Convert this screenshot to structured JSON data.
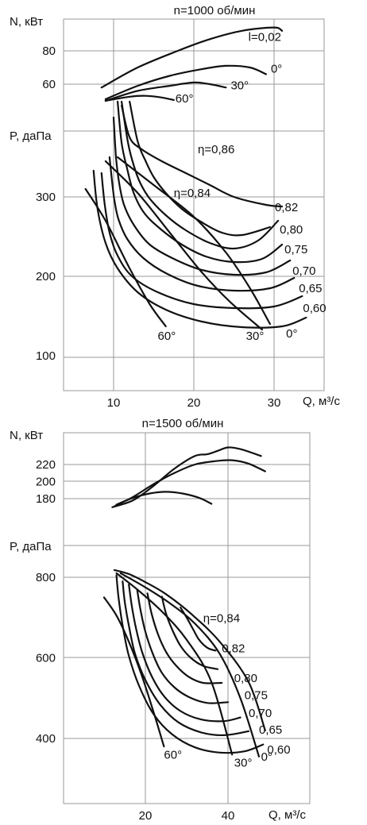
{
  "chart_data": [
    {
      "type": "line",
      "title": "n=1000 об/мин",
      "xlabel": "Q, м³/с",
      "xlim": [
        5,
        31
      ],
      "x_ticks": [
        {
          "value": 10,
          "label": "10"
        },
        {
          "value": 20,
          "label": "20"
        },
        {
          "value": 30,
          "label": "30"
        }
      ],
      "power_axis": {
        "label": "N, кВт",
        "ticks": [
          {
            "value": 80,
            "label": "80"
          },
          {
            "value": 60,
            "label": "60"
          }
        ],
        "series": [
          {
            "name": "l=0,02",
            "x": [
              8.5,
              13,
              18,
              22,
              26,
              30,
              31
            ],
            "y": [
              58,
              70,
              80,
              87,
              92,
              94,
              92
            ]
          },
          {
            "name": "0°",
            "x": [
              9,
              13,
              17,
              21,
              24,
              27,
              29
            ],
            "y": [
              51,
              59,
              65,
              69,
              71,
              70,
              66
            ]
          },
          {
            "name": "30°",
            "x": [
              9,
              13,
              17,
              20,
              22,
              24
            ],
            "y": [
              50,
              56,
              59,
              61,
              60,
              58
            ]
          },
          {
            "name": "60°",
            "x": [
              9,
              12,
              14,
              16,
              17.5
            ],
            "y": [
              50,
              52.5,
              53,
              52,
              50.5
            ]
          }
        ],
        "series_labels": [
          {
            "text": "l=0,02",
            "x": 26.8,
            "y": 86
          },
          {
            "text": "0°",
            "x": 29.6,
            "y": 67
          },
          {
            "text": "30°",
            "x": 24.6,
            "y": 57
          },
          {
            "text": "60°",
            "x": 17.7,
            "y": 49
          }
        ]
      },
      "pressure_axis": {
        "label": "P, даПа",
        "ticks": [
          {
            "value": 300,
            "label": "300"
          },
          {
            "value": 200,
            "label": "200"
          },
          {
            "value": 100,
            "label": "100"
          }
        ],
        "efficiency_curves": [
          {
            "name": "η=0,86",
            "x": [
              11,
              12,
              13.5,
              16,
              19,
              22,
              25,
              29,
              31
            ],
            "y": [
              415,
              375,
              360,
              345,
              330,
              315,
              300,
              290,
              288
            ]
          },
          {
            "name": "η=0,84",
            "x": [
              12,
              13,
              14,
              15,
              16.5,
              18.5,
              21,
              23.5,
              26,
              29.5
            ],
            "y": [
              420,
              370,
              345,
              325,
              305,
              285,
              268,
              255,
              252,
              262
            ]
          },
          {
            "name": "0,82",
            "x": [
              11,
              11.8,
              12.5,
              13.3,
              14.5,
              16.5,
              19,
              22,
              25,
              28,
              30.5
            ],
            "y": [
              420,
              368,
              340,
              318,
              298,
              277,
              258,
              242,
              235,
              245,
              270
            ]
          },
          {
            "name": "0,80",
            "x": [
              10.5,
              11,
              11.7,
              12.5,
              13.8,
              15.8,
              18.5,
              21.5,
              25,
              28.5,
              31
            ],
            "y": [
              420,
              368,
              335,
              305,
              280,
              260,
              240,
              225,
              218,
              222,
              240
            ]
          },
          {
            "name": "0,75",
            "x": [
              10,
              10.3,
              10.7,
              11.3,
              12.5,
              14.5,
              17.5,
              21,
              25,
              29,
              32
            ],
            "y": [
              400,
              350,
              317,
              290,
              265,
              240,
              222,
              208,
              202,
              205,
              220
            ]
          },
          {
            "name": "0,70",
            "x": [
              9.5,
              9.8,
              10.1,
              10.6,
              11.7,
              13.7,
              16.7,
              20.5,
              25,
              29.5,
              32.5
            ],
            "y": [
              350,
              320,
              296,
              272,
              247,
              223,
              203,
              188,
              182,
              185,
              198
            ]
          },
          {
            "name": "0,65",
            "x": [
              8.5,
              8.9,
              9.5,
              10.5,
              12.3,
              15.5,
              20,
              25,
              30,
              33.5
            ],
            "y": [
              330,
              290,
              255,
              226,
              200,
              180,
              165,
              160,
              162,
              175
            ]
          },
          {
            "name": "0,60",
            "x": [
              7.5,
              8,
              9,
              10.5,
              13,
              16.5,
              21,
              26,
              31,
              34
            ],
            "y": [
              333,
              285,
              242,
              210,
              180,
              158,
              143,
              136,
              137,
              148
            ]
          }
        ],
        "blade_angle_curves": [
          {
            "name": "60°",
            "x": [
              6.5,
              9,
              12,
              14.5,
              16.5
            ],
            "y": [
              310,
              270,
              210,
              165,
              137
            ]
          },
          {
            "name": "30°",
            "x": [
              9,
              13,
              17,
              21,
              24.5,
              28.5
            ],
            "y": [
              345,
              305,
              255,
              205,
              168,
              133
            ]
          },
          {
            "name": "0°",
            "x": [
              10.5,
              15,
              20,
              24,
              27,
              29.5
            ],
            "y": [
              350,
              315,
              275,
              230,
              185,
              140
            ]
          }
        ],
        "efficiency_labels": [
          {
            "text": "η=0,86",
            "x": 20.5,
            "y": 355
          },
          {
            "text": "η=0,84",
            "x": 17.5,
            "y": 300
          },
          {
            "text": "0,82",
            "x": 30.1,
            "y": 282
          },
          {
            "text": "0,80",
            "x": 30.7,
            "y": 254
          },
          {
            "text": "0,75",
            "x": 31.3,
            "y": 229
          },
          {
            "text": "0,70",
            "x": 32.3,
            "y": 202
          },
          {
            "text": "0,65",
            "x": 33.1,
            "y": 180
          },
          {
            "text": "0,60",
            "x": 33.6,
            "y": 155
          }
        ],
        "blade_angle_labels": [
          {
            "text": "60°",
            "x": 15.5,
            "y": 120
          },
          {
            "text": "30°",
            "x": 26.5,
            "y": 120
          },
          {
            "text": "0°",
            "x": 31.5,
            "y": 123
          }
        ]
      }
    },
    {
      "type": "line",
      "title": "n=1500 об/мин",
      "xlabel": "Q, м³/с",
      "xlim": [
        0,
        52
      ],
      "x_ticks": [
        {
          "value": 20,
          "label": "20"
        },
        {
          "value": 40,
          "label": "40"
        }
      ],
      "power_axis": {
        "label": "N, кВт",
        "ticks": [
          {
            "value": 220,
            "label": "220"
          },
          {
            "value": 200,
            "label": "200"
          },
          {
            "value": 180,
            "label": "180"
          }
        ],
        "series": [
          {
            "name": "0°",
            "x": [
              12,
              17,
              22,
              27,
              32,
              35,
              37.5,
              40,
              43,
              48
            ],
            "y": [
              170,
              178,
              195,
              215,
              230,
              232,
              236,
              240,
              238,
              230
            ]
          },
          {
            "name": "30°",
            "x": [
              12.5,
              17,
              22,
              27,
              32,
              37,
              41,
              45,
              49
            ],
            "y": [
              171,
              182,
              197,
              210,
              220,
              224,
              225,
              221,
              212
            ]
          },
          {
            "name": "60°",
            "x": [
              13,
              17,
              21,
              25,
              29,
              33,
              36
            ],
            "y": [
              173,
              181,
              186,
              188,
              186,
              181,
              174
            ]
          }
        ]
      },
      "pressure_axis": {
        "label": "P, даПа",
        "ticks": [
          {
            "value": 800,
            "label": "800"
          },
          {
            "value": 600,
            "label": "600"
          },
          {
            "value": 400,
            "label": "400"
          }
        ],
        "efficiency_curves": [
          {
            "name": "η=0,84",
            "x": [
              28.5,
              30,
              31.5,
              33,
              35,
              37
            ],
            "y": [
              725,
              700,
              672,
              645,
              625,
              618
            ]
          },
          {
            "name": "0,82",
            "x": [
              24,
              25,
              26.5,
              28.5,
              31,
              34,
              37.5
            ],
            "y": [
              752,
              710,
              670,
              630,
              600,
              580,
              572
            ]
          },
          {
            "name": "0,80",
            "x": [
              20.5,
              21.5,
              23,
              25,
              27.5,
              30.5,
              34,
              38.5
            ],
            "y": [
              760,
              710,
              660,
              615,
              580,
              553,
              538,
              538
            ]
          },
          {
            "name": "0,75",
            "x": [
              18,
              18.8,
              20,
              21.8,
              24,
              27,
              30.5,
              35,
              40
            ],
            "y": [
              770,
              720,
              665,
              610,
              563,
              527,
              503,
              488,
              490
            ]
          },
          {
            "name": "0,70",
            "x": [
              16,
              16.7,
              17.7,
              19.2,
              21.5,
              24.5,
              28.5,
              33.5,
              39,
              43
            ],
            "y": [
              782,
              730,
              675,
              615,
              555,
              505,
              468,
              447,
              443,
              452
            ]
          },
          {
            "name": "0,65",
            "x": [
              14.5,
              15,
              16,
              17.5,
              20,
              23.5,
              28,
              33.5,
              39,
              45
            ],
            "y": [
              790,
              740,
              680,
              610,
              545,
              485,
              440,
              415,
              408,
              418
            ]
          },
          {
            "name": "0,60",
            "x": [
              13,
              13.5,
              14.5,
              16,
              18.5,
              22,
              26.5,
              32,
              38,
              44,
              48.5
            ],
            "y": [
              805,
              750,
              680,
              605,
              530,
              460,
              410,
              378,
              365,
              368,
              385
            ]
          }
        ],
        "blade_angle_curves": [
          {
            "name": "60°",
            "x": [
              10,
              13,
              16,
              19,
              22,
              24.5
            ],
            "y": [
              750,
              705,
              640,
              560,
              465,
              380
            ]
          },
          {
            "name": "30°",
            "x": [
              13,
              18,
              24,
              30,
              36,
              41
            ],
            "y": [
              810,
              770,
              715,
              645,
              540,
              360
            ]
          },
          {
            "name": "0°",
            "x": [
              14,
              20,
              26,
              32,
              38,
              43,
              47.5
            ],
            "y": [
              810,
              775,
              735,
              685,
              610,
              500,
              355
            ]
          },
          {
            "name": "",
            "x": [
              12.5,
              16,
              20,
              25,
              31,
              38,
              45,
              49
            ],
            "y": [
              818,
              808,
              788,
              758,
              710,
              640,
              540,
              420
            ]
          }
        ],
        "efficiency_labels": [
          {
            "text": "η=0,84",
            "x": 34,
            "y": 689
          },
          {
            "text": "0,82",
            "x": 38.5,
            "y": 614
          },
          {
            "text": "0,80",
            "x": 41.5,
            "y": 540
          },
          {
            "text": "0,75",
            "x": 44,
            "y": 498
          },
          {
            "text": "0,70",
            "x": 45,
            "y": 453
          },
          {
            "text": "0,65",
            "x": 47.5,
            "y": 412
          },
          {
            "text": "0,60",
            "x": 49.5,
            "y": 363
          }
        ],
        "blade_angle_labels": [
          {
            "text": "60°",
            "x": 24.5,
            "y": 350
          },
          {
            "text": "30°",
            "x": 41.5,
            "y": 330
          },
          {
            "text": "0°",
            "x": 48,
            "y": 345
          }
        ]
      }
    }
  ]
}
